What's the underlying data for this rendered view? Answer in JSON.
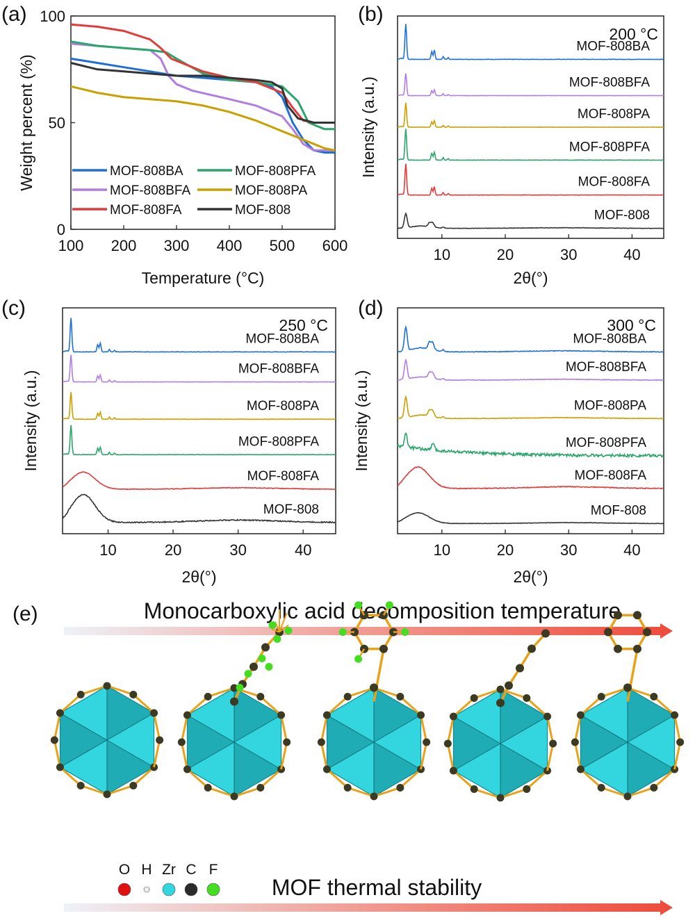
{
  "colors": {
    "MOF-808BA": "#1f6fd6",
    "MOF-808BFA": "#b07de0",
    "MOF-808PA": "#c9a000",
    "MOF-808PFA": "#2aa56b",
    "MOF-808FA": "#e23b3b",
    "MOF-808": "#333333",
    "zr": "#33d6de",
    "zr_dark": "#118a93",
    "carbon": "#3c3a22",
    "fluorine": "#44dd22",
    "bond": "#e8a21a"
  },
  "chart_data": [
    {
      "id": "a",
      "panel_label": "(a)",
      "type": "line",
      "xlabel": "Temperature (°C)",
      "ylabel": "Weight percent (%)",
      "xlim": [
        100,
        600
      ],
      "ylim": [
        0,
        100
      ],
      "xticks": [
        "100",
        "200",
        "300",
        "400",
        "500",
        "600"
      ],
      "yticks": [
        "0",
        "50",
        "100"
      ],
      "legend_position": "lower-left",
      "grid": false,
      "series": [
        {
          "name": "MOF-808BA",
          "x": [
            100,
            150,
            200,
            250,
            300,
            350,
            400,
            450,
            480,
            500,
            520,
            540,
            560,
            580,
            600
          ],
          "y": [
            80,
            78,
            76,
            74,
            72,
            71,
            70,
            69,
            67,
            62,
            50,
            42,
            37,
            36,
            36
          ]
        },
        {
          "name": "MOF-808BFA",
          "x": [
            100,
            150,
            200,
            250,
            270,
            285,
            300,
            330,
            400,
            450,
            500,
            520,
            540,
            560,
            580,
            600
          ],
          "y": [
            87,
            86,
            85,
            84,
            80,
            72,
            68,
            65,
            61,
            58,
            53,
            47,
            40,
            37,
            37,
            37
          ]
        },
        {
          "name": "MOF-808PA",
          "x": [
            100,
            150,
            200,
            300,
            350,
            400,
            450,
            500,
            530,
            560,
            580,
            600
          ],
          "y": [
            67,
            64,
            62,
            60,
            58,
            55,
            51,
            46,
            43,
            40,
            38,
            37
          ]
        },
        {
          "name": "MOF-808PFA",
          "x": [
            100,
            150,
            200,
            250,
            280,
            300,
            350,
            400,
            450,
            500,
            530,
            550,
            580,
            600
          ],
          "y": [
            88,
            86,
            85,
            84,
            83,
            80,
            73,
            70,
            69,
            67,
            60,
            50,
            47,
            47
          ]
        },
        {
          "name": "MOF-808FA",
          "x": [
            100,
            150,
            200,
            250,
            270,
            290,
            320,
            350,
            400,
            450,
            500,
            520,
            540,
            560,
            600
          ],
          "y": [
            96,
            95,
            93,
            89,
            85,
            80,
            77,
            74,
            71,
            69,
            64,
            57,
            51,
            50,
            50
          ]
        },
        {
          "name": "MOF-808",
          "x": [
            100,
            150,
            200,
            250,
            300,
            350,
            400,
            450,
            480,
            500,
            510,
            530,
            560,
            600
          ],
          "y": [
            78,
            75,
            74,
            73,
            72,
            72,
            71,
            70,
            69,
            66,
            58,
            52,
            50,
            50
          ]
        }
      ]
    },
    {
      "id": "b",
      "panel_label": "(b)",
      "type": "line",
      "annotation": "200 °C",
      "xlabel": "2θ(°)",
      "ylabel": "Intensity (a.u.)",
      "xlim": [
        3,
        45
      ],
      "xticks": [
        "10",
        "20",
        "30",
        "40"
      ],
      "y_unit": "a.u.",
      "series": [
        {
          "name": "MOF-808BA",
          "baseline": 0.805,
          "profile": "crystal",
          "intensity": 0.16
        },
        {
          "name": "MOF-808BFA",
          "baseline": 0.642,
          "profile": "crystal",
          "intensity": 0.1
        },
        {
          "name": "MOF-808PA",
          "baseline": 0.5,
          "profile": "crystal",
          "intensity": 0.11
        },
        {
          "name": "MOF-808PFA",
          "baseline": 0.352,
          "profile": "crystal",
          "intensity": 0.14
        },
        {
          "name": "MOF-808FA",
          "baseline": 0.195,
          "profile": "crystal",
          "intensity": 0.14
        },
        {
          "name": "MOF-808",
          "baseline": 0.045,
          "profile": "mixed",
          "intensity": 0.09
        }
      ]
    },
    {
      "id": "c",
      "panel_label": "(c)",
      "type": "line",
      "annotation": "250 °C",
      "xlabel": "2θ(°)",
      "ylabel": "Intensity (a.u.)",
      "xlim": [
        3,
        45
      ],
      "xticks": [
        "10",
        "20",
        "30",
        "40"
      ],
      "y_unit": "a.u.",
      "series": [
        {
          "name": "MOF-808BA",
          "baseline": 0.805,
          "profile": "crystal",
          "intensity": 0.15
        },
        {
          "name": "MOF-808BFA",
          "baseline": 0.672,
          "profile": "crystal",
          "intensity": 0.12
        },
        {
          "name": "MOF-808PA",
          "baseline": 0.507,
          "profile": "crystal",
          "intensity": 0.12
        },
        {
          "name": "MOF-808PFA",
          "baseline": 0.35,
          "profile": "crystal",
          "intensity": 0.13
        },
        {
          "name": "MOF-808FA",
          "baseline": 0.197,
          "profile": "amorphous",
          "intensity": 0.08
        },
        {
          "name": "MOF-808",
          "baseline": 0.05,
          "profile": "amorphous",
          "intensity": 0.13
        }
      ]
    },
    {
      "id": "d",
      "panel_label": "(d)",
      "type": "line",
      "annotation": "300 °C",
      "xlabel": "2θ(°)",
      "ylabel": "Intensity (a.u.)",
      "xlim": [
        3,
        45
      ],
      "xticks": [
        "10",
        "20",
        "30",
        "40"
      ],
      "y_unit": "a.u.",
      "series": [
        {
          "name": "MOF-808BA",
          "baseline": 0.805,
          "profile": "mixed",
          "intensity": 0.15
        },
        {
          "name": "MOF-808BFA",
          "baseline": 0.68,
          "profile": "mixed",
          "intensity": 0.12
        },
        {
          "name": "MOF-808PA",
          "baseline": 0.51,
          "profile": "mixed",
          "intensity": 0.13
        },
        {
          "name": "MOF-808PFA",
          "baseline": 0.345,
          "profile": "noisy",
          "intensity": 0.16
        },
        {
          "name": "MOF-808FA",
          "baseline": 0.2,
          "profile": "amorphous",
          "intensity": 0.1
        },
        {
          "name": "MOF-808",
          "baseline": 0.045,
          "profile": "amorphous",
          "intensity": 0.05
        }
      ]
    }
  ],
  "panel_e": {
    "panel_label": "(e)",
    "top_arrow_label": "Monocarboxylic acid decomposition temperature",
    "bottom_arrow_label": "MOF thermal stability",
    "atom_legend": [
      {
        "symbol": "O",
        "color": "#e01010"
      },
      {
        "symbol": "H",
        "color": "#eeeeee"
      },
      {
        "symbol": "Zr",
        "color": "#33d6de"
      },
      {
        "symbol": "C",
        "color": "#2b2b2b"
      },
      {
        "symbol": "F",
        "color": "#44dd22"
      }
    ],
    "structures": [
      {
        "ligand": "none"
      },
      {
        "ligand": "trifluoro-chain"
      },
      {
        "ligand": "pentafluoro-ring"
      },
      {
        "ligand": "alkyl-chain"
      },
      {
        "ligand": "phenyl-ring"
      }
    ]
  }
}
